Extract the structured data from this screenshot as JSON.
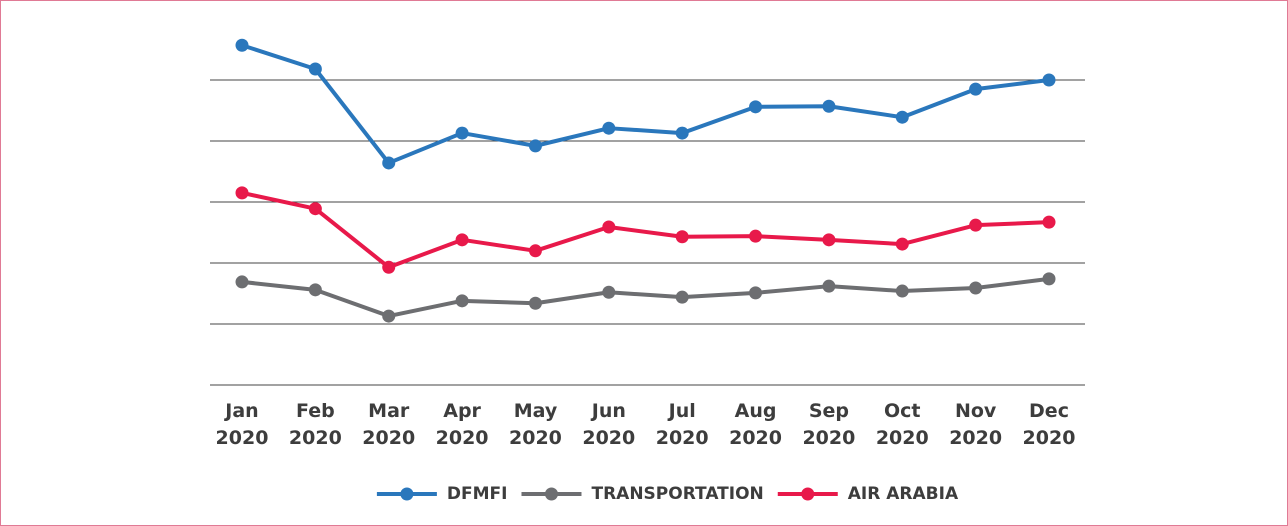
{
  "chart_data": {
    "type": "line",
    "categories": [
      "Jan 2020",
      "Feb 2020",
      "Mar 2020",
      "Apr 2020",
      "May 2020",
      "Jun 2020",
      "Jul 2020",
      "Aug 2020",
      "Sep 2020",
      "Oct 2020",
      "Nov 2020",
      "Dec 2020"
    ],
    "series": [
      {
        "name": "DFMFI",
        "color": "#2a77bc",
        "values": [
          5.57,
          5.18,
          3.64,
          4.13,
          3.92,
          4.21,
          4.13,
          4.56,
          4.57,
          4.39,
          4.85,
          5.0
        ]
      },
      {
        "name": "TRANSPORTATION",
        "color": "#6d6e71",
        "values": [
          1.69,
          1.56,
          1.13,
          1.38,
          1.34,
          1.52,
          1.44,
          1.51,
          1.62,
          1.54,
          1.59,
          1.74
        ]
      },
      {
        "name": "AIR ARABIA",
        "color": "#e8194a",
        "values": [
          3.15,
          2.89,
          1.93,
          2.38,
          2.2,
          2.59,
          2.43,
          2.44,
          2.38,
          2.31,
          2.62,
          2.67
        ]
      }
    ],
    "ylim": [
      0,
      5.8
    ],
    "yticks": [
      0,
      1,
      2,
      3,
      4,
      5
    ],
    "grid": true,
    "legend": "bottom"
  }
}
